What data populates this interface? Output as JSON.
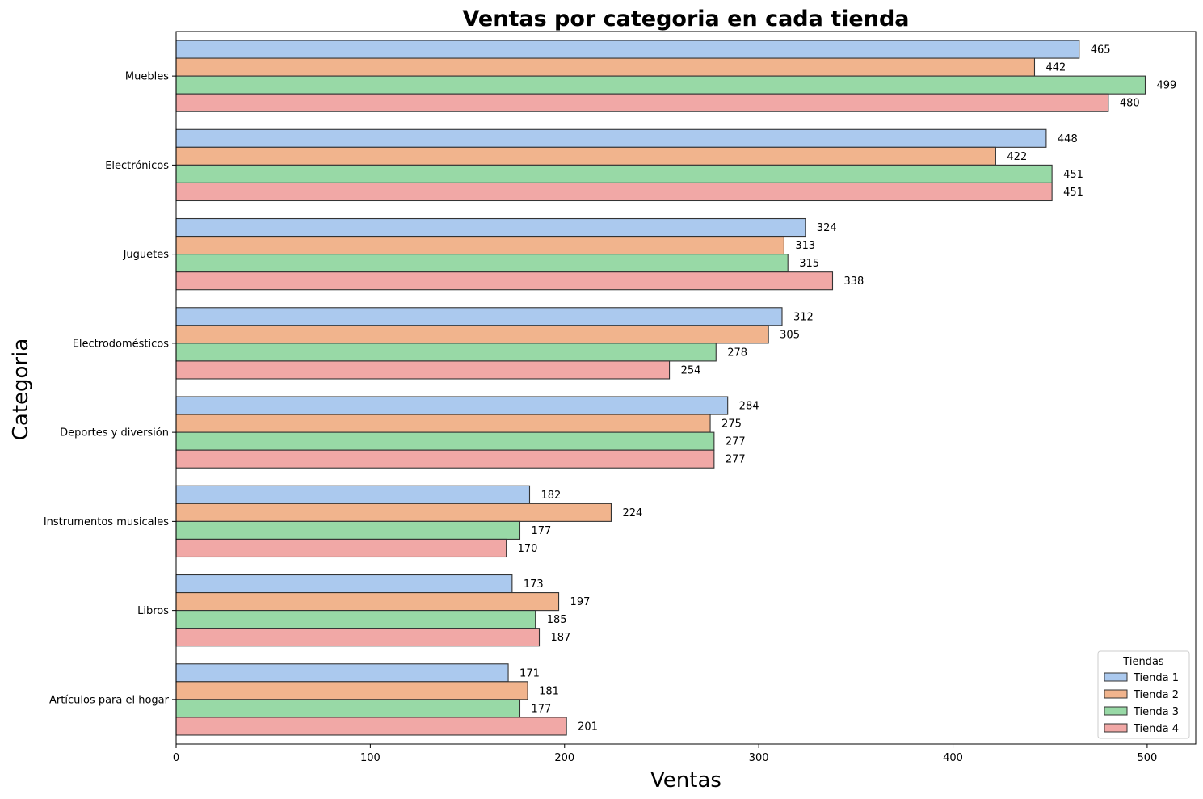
{
  "chart_data": {
    "type": "bar",
    "orientation": "horizontal",
    "title": "Ventas por categoria en cada tienda",
    "xlabel": "Ventas",
    "ylabel": "Categoria",
    "xlim": [
      0,
      525
    ],
    "xticks": [
      0,
      100,
      200,
      300,
      400,
      500
    ],
    "grid": false,
    "legend_title": "Tiendas",
    "legend_position": "lower-right",
    "categories": [
      "Muebles",
      "Electrónicos",
      "Juguetes",
      "Electrodomésticos",
      "Deportes y diversión",
      "Instrumentos musicales",
      "Libros",
      "Artículos para el hogar"
    ],
    "series": [
      {
        "name": "Tienda 1",
        "color": "#abc9ee",
        "values": [
          465,
          448,
          324,
          312,
          284,
          182,
          173,
          171
        ]
      },
      {
        "name": "Tienda 2",
        "color": "#f1b48d",
        "values": [
          442,
          422,
          313,
          305,
          275,
          224,
          197,
          181
        ]
      },
      {
        "name": "Tienda 3",
        "color": "#98d9a6",
        "values": [
          499,
          451,
          315,
          278,
          277,
          177,
          185,
          177
        ]
      },
      {
        "name": "Tienda 4",
        "color": "#f1a8a6",
        "values": [
          480,
          451,
          338,
          254,
          277,
          170,
          187,
          201
        ]
      }
    ]
  }
}
